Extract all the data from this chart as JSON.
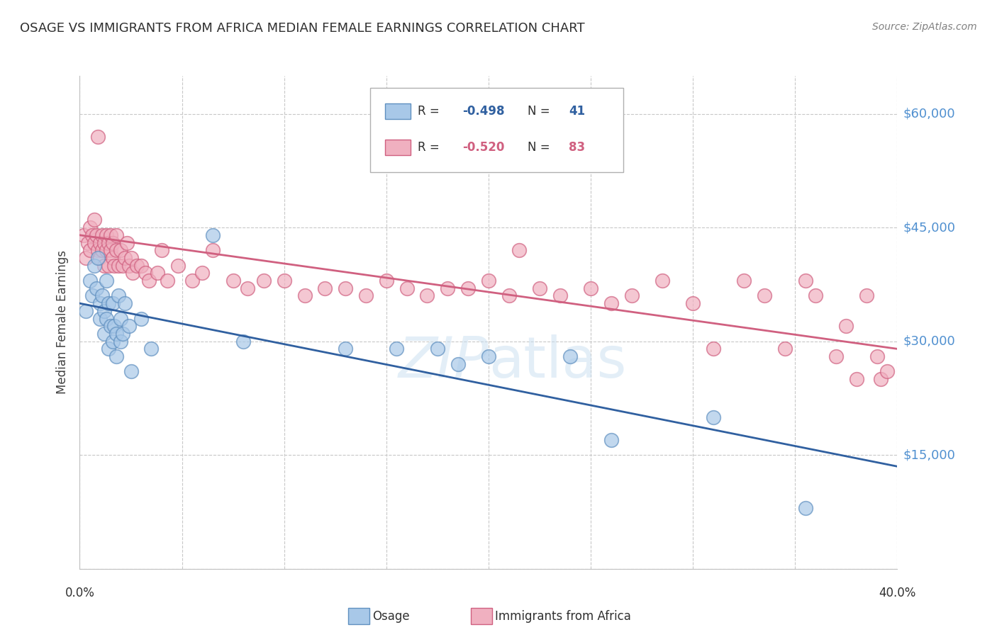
{
  "title": "OSAGE VS IMMIGRANTS FROM AFRICA MEDIAN FEMALE EARNINGS CORRELATION CHART",
  "source": "Source: ZipAtlas.com",
  "ylabel": "Median Female Earnings",
  "yticks": [
    0,
    15000,
    30000,
    45000,
    60000
  ],
  "ytick_labels": [
    "",
    "$15,000",
    "$30,000",
    "$45,000",
    "$60,000"
  ],
  "xlim": [
    0.0,
    0.4
  ],
  "ylim": [
    0,
    65000
  ],
  "watermark": "ZIPatlas",
  "osage_color": "#a8c8e8",
  "osage_edge_color": "#6090c0",
  "africa_color": "#f0b0c0",
  "africa_edge_color": "#d06080",
  "osage_line_color": "#3060a0",
  "africa_line_color": "#d06080",
  "osage_line_x": [
    0.0,
    0.4
  ],
  "osage_line_y": [
    35000,
    13500
  ],
  "africa_line_x": [
    0.0,
    0.4
  ],
  "africa_line_y": [
    44000,
    29000
  ],
  "background_color": "#ffffff",
  "grid_color": "#c8c8c8",
  "title_color": "#303030",
  "ytick_color": "#5090d0",
  "osage_R": -0.498,
  "osage_N": 41,
  "africa_R": -0.52,
  "africa_N": 83,
  "osage_x": [
    0.003,
    0.005,
    0.006,
    0.007,
    0.008,
    0.009,
    0.01,
    0.01,
    0.011,
    0.012,
    0.012,
    0.013,
    0.013,
    0.014,
    0.014,
    0.015,
    0.016,
    0.016,
    0.017,
    0.018,
    0.018,
    0.019,
    0.02,
    0.02,
    0.021,
    0.022,
    0.024,
    0.025,
    0.03,
    0.035,
    0.065,
    0.08,
    0.13,
    0.155,
    0.175,
    0.185,
    0.2,
    0.24,
    0.26,
    0.31,
    0.355
  ],
  "osage_y": [
    34000,
    38000,
    36000,
    40000,
    37000,
    41000,
    33000,
    35000,
    36000,
    31000,
    34000,
    38000,
    33000,
    29000,
    35000,
    32000,
    30000,
    35000,
    32000,
    28000,
    31000,
    36000,
    30000,
    33000,
    31000,
    35000,
    32000,
    26000,
    33000,
    29000,
    44000,
    30000,
    29000,
    29000,
    29000,
    27000,
    28000,
    28000,
    17000,
    20000,
    8000
  ],
  "africa_x": [
    0.002,
    0.003,
    0.004,
    0.005,
    0.005,
    0.006,
    0.007,
    0.007,
    0.008,
    0.009,
    0.009,
    0.01,
    0.01,
    0.011,
    0.011,
    0.012,
    0.012,
    0.013,
    0.013,
    0.014,
    0.014,
    0.015,
    0.015,
    0.016,
    0.016,
    0.017,
    0.018,
    0.018,
    0.019,
    0.02,
    0.021,
    0.022,
    0.023,
    0.024,
    0.025,
    0.026,
    0.028,
    0.03,
    0.032,
    0.034,
    0.038,
    0.04,
    0.043,
    0.048,
    0.055,
    0.06,
    0.065,
    0.075,
    0.082,
    0.09,
    0.1,
    0.11,
    0.12,
    0.13,
    0.14,
    0.15,
    0.16,
    0.17,
    0.18,
    0.19,
    0.2,
    0.21,
    0.215,
    0.225,
    0.235,
    0.25,
    0.26,
    0.27,
    0.285,
    0.3,
    0.31,
    0.325,
    0.335,
    0.345,
    0.355,
    0.36,
    0.37,
    0.375,
    0.38,
    0.385,
    0.39,
    0.392,
    0.395
  ],
  "africa_y": [
    44000,
    41000,
    43000,
    45000,
    42000,
    44000,
    43000,
    46000,
    44000,
    57000,
    42000,
    43000,
    41000,
    44000,
    42000,
    43000,
    40000,
    44000,
    42000,
    40000,
    43000,
    44000,
    42000,
    43000,
    41000,
    40000,
    42000,
    44000,
    40000,
    42000,
    40000,
    41000,
    43000,
    40000,
    41000,
    39000,
    40000,
    40000,
    39000,
    38000,
    39000,
    42000,
    38000,
    40000,
    38000,
    39000,
    42000,
    38000,
    37000,
    38000,
    38000,
    36000,
    37000,
    37000,
    36000,
    38000,
    37000,
    36000,
    37000,
    37000,
    38000,
    36000,
    42000,
    37000,
    36000,
    37000,
    35000,
    36000,
    38000,
    35000,
    29000,
    38000,
    36000,
    29000,
    38000,
    36000,
    28000,
    32000,
    25000,
    36000,
    28000,
    25000,
    26000
  ]
}
